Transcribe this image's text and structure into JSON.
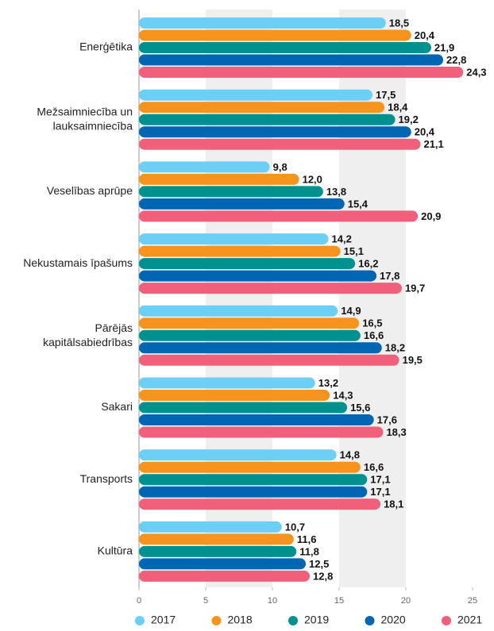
{
  "chart_data": {
    "type": "bar",
    "orientation": "horizontal",
    "categories": [
      "Enerģētika",
      "Mežsaimniecība un\nlauksaimniecība",
      "Veselības aprūpe",
      "Nekustamais īpašums",
      "Pārējās\nkapitālsabiedrības",
      "Sakari",
      "Transports",
      "Kultūra"
    ],
    "series": [
      {
        "name": "2017",
        "color": "#6dcff6",
        "values": [
          18.5,
          17.5,
          9.8,
          14.2,
          14.9,
          13.2,
          14.8,
          10.7
        ],
        "value_labels": [
          "18,5",
          "17,5",
          "9,8",
          "14,2",
          "14,9",
          "13,2",
          "14,8",
          "10,7"
        ]
      },
      {
        "name": "2018",
        "color": "#f7941d",
        "values": [
          20.4,
          18.4,
          12.0,
          15.1,
          16.5,
          14.3,
          16.6,
          11.6
        ],
        "value_labels": [
          "20,4",
          "18,4",
          "12,0",
          "15,1",
          "16,5",
          "14,3",
          "16,6",
          "11,6"
        ]
      },
      {
        "name": "2019",
        "color": "#00918f",
        "values": [
          21.9,
          19.2,
          13.8,
          16.2,
          16.6,
          15.6,
          17.1,
          11.8
        ],
        "value_labels": [
          "21,9",
          "19,2",
          "13,8",
          "16,2",
          "16,6",
          "15,6",
          "17,1",
          "11,8"
        ]
      },
      {
        "name": "2020",
        "color": "#0066b3",
        "values": [
          22.8,
          20.4,
          15.4,
          17.8,
          18.2,
          17.6,
          17.1,
          12.5
        ],
        "value_labels": [
          "22,8",
          "20,4",
          "15,4",
          "17,8",
          "18,2",
          "17,6",
          "17,1",
          "12,5"
        ]
      },
      {
        "name": "2021",
        "color": "#f0607a",
        "values": [
          24.3,
          21.1,
          20.9,
          19.7,
          19.5,
          18.3,
          18.1,
          12.8
        ],
        "value_labels": [
          "24,3",
          "21,1",
          "20,9",
          "19,7",
          "19,5",
          "18,3",
          "18,1",
          "12,8"
        ]
      }
    ],
    "xlim": [
      0,
      25
    ],
    "xticks": [
      0,
      5,
      10,
      15,
      20,
      25
    ],
    "grid": "bands",
    "legend": "bottom"
  }
}
